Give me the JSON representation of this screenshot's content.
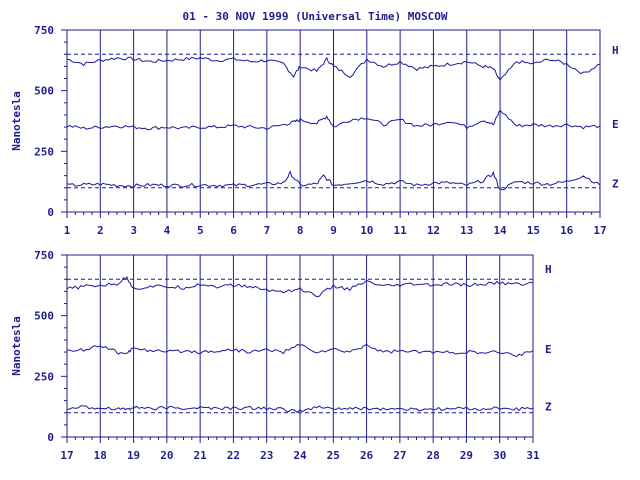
{
  "title": "01 - 30 NOV 1999 (Universal Time) MOSCOW",
  "colors": {
    "ink": "#1f1f8c",
    "trace": "#1a1a9e",
    "background": "#ffffff"
  },
  "chart_data": [
    {
      "type": "line",
      "panel": "top",
      "ylabel": "Nanotesla",
      "ylim": [
        0,
        750
      ],
      "yticks": [
        "0",
        "250",
        "500",
        "750"
      ],
      "xlim": [
        1,
        17
      ],
      "xticks": [
        "1",
        "2",
        "3",
        "4",
        "5",
        "6",
        "7",
        "8",
        "9",
        "10",
        "11",
        "12",
        "13",
        "14",
        "15",
        "16",
        "17"
      ],
      "grid": "vertical lines at each day",
      "reference_lines": [
        650,
        100
      ],
      "series": [
        {
          "name": "H",
          "x": [
            1,
            1.5,
            2,
            2.5,
            3,
            3.5,
            4,
            4.5,
            5,
            5.5,
            6,
            6.5,
            7,
            7.5,
            7.8,
            8,
            8.5,
            8.8,
            9,
            9.5,
            10,
            10.5,
            11,
            11.5,
            12,
            12.5,
            13,
            13.5,
            13.8,
            14,
            14.5,
            15,
            15.5,
            16,
            16.5,
            17
          ],
          "values": [
            630,
            610,
            625,
            635,
            630,
            620,
            625,
            630,
            635,
            625,
            630,
            620,
            625,
            610,
            560,
            600,
            580,
            630,
            600,
            560,
            630,
            600,
            620,
            590,
            600,
            610,
            620,
            600,
            590,
            540,
            620,
            610,
            630,
            610,
            570,
            610
          ]
        },
        {
          "name": "E",
          "x": [
            1,
            1.5,
            2,
            2.5,
            3,
            3.5,
            4,
            4.5,
            5,
            5.5,
            6,
            6.5,
            7,
            7.5,
            7.8,
            8,
            8.5,
            8.8,
            9,
            9.5,
            10,
            10.5,
            11,
            11.5,
            12,
            12.5,
            13,
            13.5,
            13.8,
            14,
            14.5,
            15,
            15.5,
            16,
            16.5,
            17
          ],
          "values": [
            355,
            345,
            350,
            355,
            350,
            345,
            350,
            345,
            350,
            350,
            355,
            350,
            345,
            360,
            370,
            380,
            365,
            395,
            350,
            380,
            390,
            360,
            380,
            355,
            360,
            375,
            350,
            380,
            360,
            420,
            355,
            360,
            355,
            360,
            350,
            355
          ]
        },
        {
          "name": "Z",
          "x": [
            1,
            1.5,
            2,
            2.5,
            3,
            3.5,
            4,
            4.5,
            5,
            5.5,
            6,
            6.5,
            7,
            7.5,
            7.7,
            8,
            8.5,
            8.7,
            9,
            9.5,
            10,
            10.5,
            11,
            11.5,
            12,
            12.5,
            13,
            13.5,
            13.8,
            14,
            14.5,
            15,
            15.5,
            16,
            16.5,
            17
          ],
          "values": [
            110,
            112,
            115,
            110,
            108,
            112,
            110,
            110,
            112,
            110,
            110,
            112,
            115,
            120,
            160,
            110,
            115,
            150,
            110,
            120,
            130,
            115,
            125,
            110,
            120,
            120,
            110,
            130,
            160,
            90,
            125,
            120,
            115,
            125,
            150,
            110
          ]
        }
      ]
    },
    {
      "type": "line",
      "panel": "bottom",
      "ylabel": "Nanotesla",
      "ylim": [
        0,
        750
      ],
      "yticks": [
        "0",
        "250",
        "500",
        "750"
      ],
      "xlim": [
        17,
        31
      ],
      "xticks": [
        "17",
        "18",
        "19",
        "20",
        "21",
        "22",
        "23",
        "24",
        "25",
        "26",
        "27",
        "28",
        "29",
        "30",
        "31"
      ],
      "grid": "vertical lines at each day",
      "reference_lines": [
        650,
        100
      ],
      "series": [
        {
          "name": "H",
          "x": [
            17,
            17.5,
            18,
            18.5,
            18.8,
            19,
            19.5,
            20,
            20.5,
            21,
            21.5,
            22,
            22.5,
            23,
            23.5,
            24,
            24.5,
            25,
            25.5,
            26,
            26.5,
            27,
            27.5,
            28,
            28.5,
            29,
            29.5,
            30,
            30.5,
            31
          ],
          "values": [
            610,
            620,
            625,
            630,
            660,
            610,
            620,
            620,
            615,
            630,
            620,
            625,
            620,
            605,
            600,
            610,
            580,
            620,
            610,
            640,
            620,
            625,
            630,
            625,
            630,
            625,
            630,
            635,
            630,
            635
          ]
        },
        {
          "name": "E",
          "x": [
            17,
            17.5,
            18,
            18.5,
            18.8,
            19,
            19.5,
            20,
            20.5,
            21,
            21.5,
            22,
            22.5,
            23,
            23.5,
            24,
            24.5,
            25,
            25.5,
            26,
            26.5,
            27,
            27.5,
            28,
            28.5,
            29,
            29.5,
            30,
            30.5,
            31
          ],
          "values": [
            355,
            360,
            380,
            350,
            340,
            370,
            355,
            350,
            355,
            350,
            355,
            360,
            350,
            360,
            350,
            380,
            350,
            360,
            350,
            380,
            350,
            355,
            350,
            350,
            348,
            350,
            345,
            350,
            335,
            355
          ]
        },
        {
          "name": "Z",
          "x": [
            17,
            17.5,
            18,
            18.5,
            18.8,
            19,
            19.5,
            20,
            20.5,
            21,
            21.5,
            22,
            22.5,
            23,
            23.5,
            24,
            24.5,
            25,
            25.5,
            26,
            26.5,
            27,
            27.5,
            28,
            28.5,
            29,
            29.5,
            30,
            30.5,
            31
          ],
          "values": [
            120,
            122,
            120,
            118,
            115,
            122,
            118,
            120,
            118,
            120,
            118,
            118,
            120,
            118,
            115,
            105,
            122,
            118,
            115,
            118,
            115,
            115,
            112,
            115,
            115,
            118,
            115,
            118,
            115,
            118
          ]
        }
      ]
    }
  ]
}
